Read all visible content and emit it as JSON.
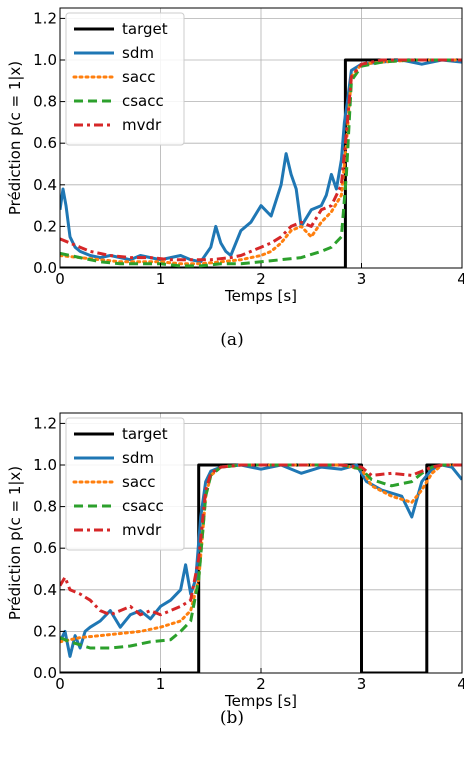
{
  "chart_data": [
    {
      "type": "line",
      "xlabel": "Temps [s]",
      "ylabel": "Prédiction p(c = 1|x)",
      "xlim": [
        0,
        4
      ],
      "ylim": [
        0,
        1.25
      ],
      "xticks": [
        0,
        1,
        2,
        3,
        4
      ],
      "yticks": [
        0.0,
        0.2,
        0.4,
        0.6,
        0.8,
        1.0,
        1.2
      ],
      "xtick_labels": [
        "0",
        "1",
        "2",
        "3",
        "4"
      ],
      "ytick_labels": [
        "0.0",
        "0.2",
        "0.4",
        "0.6",
        "0.8",
        "1.0",
        "1.2"
      ],
      "grid": true,
      "legend": "top-left",
      "caption": "(a)",
      "series": [
        {
          "name": "target",
          "color": "#000000",
          "style": "solid",
          "x": [
            0,
            2.84,
            2.84,
            4.0
          ],
          "y": [
            0,
            0,
            1.0,
            1.0
          ]
        },
        {
          "name": "sdm",
          "color": "#1f77b4",
          "style": "solid",
          "x": [
            0,
            0.03,
            0.06,
            0.1,
            0.15,
            0.2,
            0.3,
            0.4,
            0.5,
            0.6,
            0.7,
            0.8,
            0.9,
            1.0,
            1.1,
            1.2,
            1.3,
            1.4,
            1.5,
            1.55,
            1.6,
            1.65,
            1.7,
            1.8,
            1.9,
            2.0,
            2.1,
            2.2,
            2.25,
            2.3,
            2.35,
            2.4,
            2.5,
            2.6,
            2.65,
            2.7,
            2.75,
            2.8,
            2.83,
            2.86,
            2.9,
            3.0,
            3.2,
            3.4,
            3.6,
            3.8,
            4.0
          ],
          "y": [
            0.28,
            0.38,
            0.3,
            0.15,
            0.1,
            0.08,
            0.06,
            0.05,
            0.06,
            0.05,
            0.04,
            0.06,
            0.05,
            0.04,
            0.05,
            0.06,
            0.04,
            0.03,
            0.1,
            0.2,
            0.12,
            0.08,
            0.06,
            0.18,
            0.22,
            0.3,
            0.25,
            0.4,
            0.55,
            0.45,
            0.38,
            0.2,
            0.28,
            0.3,
            0.35,
            0.45,
            0.38,
            0.52,
            0.7,
            0.8,
            0.95,
            0.98,
            0.99,
            1.0,
            0.98,
            1.0,
            0.99
          ]
        },
        {
          "name": "sacc",
          "color": "#ff7f0e",
          "style": "dotted",
          "x": [
            0,
            0.2,
            0.4,
            0.6,
            0.8,
            1.0,
            1.2,
            1.4,
            1.6,
            1.8,
            2.0,
            2.1,
            2.2,
            2.3,
            2.4,
            2.5,
            2.6,
            2.7,
            2.8,
            2.85,
            2.9,
            3.0,
            3.2,
            3.5,
            4.0
          ],
          "y": [
            0.06,
            0.05,
            0.04,
            0.03,
            0.03,
            0.03,
            0.02,
            0.02,
            0.03,
            0.04,
            0.06,
            0.08,
            0.12,
            0.18,
            0.2,
            0.15,
            0.22,
            0.27,
            0.35,
            0.6,
            0.92,
            0.98,
            0.99,
            1.0,
            1.0
          ]
        },
        {
          "name": "csacc",
          "color": "#2ca02c",
          "style": "dashed",
          "x": [
            0,
            0.2,
            0.4,
            0.6,
            0.8,
            1.0,
            1.2,
            1.4,
            1.6,
            1.8,
            2.0,
            2.2,
            2.4,
            2.6,
            2.7,
            2.8,
            2.85,
            2.9,
            3.0,
            3.2,
            3.5,
            4.0
          ],
          "y": [
            0.07,
            0.05,
            0.03,
            0.02,
            0.02,
            0.02,
            0.01,
            0.01,
            0.02,
            0.02,
            0.03,
            0.04,
            0.05,
            0.08,
            0.1,
            0.15,
            0.45,
            0.9,
            0.97,
            0.99,
            1.0,
            1.0
          ]
        },
        {
          "name": "mvdr",
          "color": "#d62728",
          "style": "dashdot",
          "x": [
            0,
            0.1,
            0.2,
            0.3,
            0.5,
            0.7,
            0.9,
            1.1,
            1.3,
            1.5,
            1.7,
            1.8,
            1.9,
            2.0,
            2.1,
            2.2,
            2.3,
            2.4,
            2.5,
            2.6,
            2.7,
            2.8,
            2.85,
            2.9,
            3.0,
            3.2,
            3.5,
            4.0
          ],
          "y": [
            0.14,
            0.12,
            0.1,
            0.08,
            0.06,
            0.05,
            0.05,
            0.04,
            0.04,
            0.04,
            0.05,
            0.06,
            0.08,
            0.1,
            0.12,
            0.15,
            0.2,
            0.22,
            0.2,
            0.28,
            0.3,
            0.4,
            0.65,
            0.92,
            0.98,
            1.0,
            1.0,
            1.0
          ]
        }
      ]
    },
    {
      "type": "line",
      "xlabel": "Temps [s]",
      "ylabel": "Prédiction p(c = 1|x)",
      "xlim": [
        0,
        4
      ],
      "ylim": [
        0,
        1.25
      ],
      "xticks": [
        0,
        1,
        2,
        3,
        4
      ],
      "yticks": [
        0.0,
        0.2,
        0.4,
        0.6,
        0.8,
        1.0,
        1.2
      ],
      "xtick_labels": [
        "0",
        "1",
        "2",
        "3",
        "4"
      ],
      "ytick_labels": [
        "0.0",
        "0.2",
        "0.4",
        "0.6",
        "0.8",
        "1.0",
        "1.2"
      ],
      "grid": true,
      "legend": "top-left",
      "caption": "(b)",
      "series": [
        {
          "name": "target",
          "color": "#000000",
          "style": "solid",
          "x": [
            0,
            1.38,
            1.38,
            3.0,
            3.0,
            3.65,
            3.65,
            4.0
          ],
          "y": [
            0,
            0,
            1.0,
            1.0,
            0,
            0,
            1.0,
            1.0
          ]
        },
        {
          "name": "sdm",
          "color": "#1f77b4",
          "style": "solid",
          "x": [
            0,
            0.05,
            0.1,
            0.15,
            0.2,
            0.25,
            0.3,
            0.4,
            0.5,
            0.6,
            0.7,
            0.8,
            0.9,
            1.0,
            1.1,
            1.2,
            1.25,
            1.3,
            1.35,
            1.4,
            1.45,
            1.5,
            1.6,
            1.8,
            2.0,
            2.2,
            2.4,
            2.6,
            2.8,
            2.95,
            3.05,
            3.2,
            3.4,
            3.5,
            3.6,
            3.7,
            3.8,
            3.9,
            4.0
          ],
          "y": [
            0.15,
            0.2,
            0.08,
            0.18,
            0.12,
            0.2,
            0.22,
            0.25,
            0.3,
            0.22,
            0.28,
            0.3,
            0.26,
            0.32,
            0.35,
            0.4,
            0.52,
            0.38,
            0.45,
            0.75,
            0.92,
            0.97,
            0.99,
            1.0,
            0.98,
            1.0,
            0.96,
            0.99,
            0.98,
            1.0,
            0.92,
            0.88,
            0.85,
            0.75,
            0.92,
            0.98,
            1.0,
            0.99,
            0.93
          ]
        },
        {
          "name": "sacc",
          "color": "#ff7f0e",
          "style": "dotted",
          "x": [
            0,
            0.2,
            0.4,
            0.6,
            0.8,
            1.0,
            1.2,
            1.3,
            1.38,
            1.45,
            1.5,
            1.6,
            1.8,
            2.0,
            2.4,
            2.8,
            3.0,
            3.1,
            3.3,
            3.5,
            3.6,
            3.7,
            3.8,
            4.0
          ],
          "y": [
            0.15,
            0.17,
            0.18,
            0.19,
            0.2,
            0.22,
            0.25,
            0.3,
            0.45,
            0.85,
            0.95,
            0.99,
            1.0,
            1.0,
            1.0,
            1.0,
            0.98,
            0.9,
            0.85,
            0.82,
            0.88,
            0.96,
            1.0,
            1.0
          ]
        },
        {
          "name": "csacc",
          "color": "#2ca02c",
          "style": "dashed",
          "x": [
            0,
            0.1,
            0.3,
            0.5,
            0.7,
            0.9,
            1.1,
            1.2,
            1.3,
            1.38,
            1.45,
            1.5,
            1.6,
            1.8,
            2.0,
            2.4,
            2.8,
            3.0,
            3.1,
            3.3,
            3.5,
            3.6,
            3.7,
            3.8,
            4.0
          ],
          "y": [
            0.17,
            0.15,
            0.12,
            0.12,
            0.13,
            0.15,
            0.16,
            0.2,
            0.25,
            0.45,
            0.85,
            0.95,
            0.99,
            1.0,
            1.0,
            1.0,
            1.0,
            0.98,
            0.93,
            0.9,
            0.92,
            0.96,
            0.99,
            1.0,
            1.0
          ]
        },
        {
          "name": "mvdr",
          "color": "#d62728",
          "style": "dashdot",
          "x": [
            0,
            0.05,
            0.1,
            0.2,
            0.3,
            0.4,
            0.5,
            0.6,
            0.7,
            0.8,
            0.9,
            1.0,
            1.1,
            1.2,
            1.3,
            1.38,
            1.45,
            1.5,
            1.6,
            1.8,
            2.0,
            2.4,
            2.8,
            3.0,
            3.1,
            3.3,
            3.5,
            3.6,
            3.7,
            3.8,
            4.0
          ],
          "y": [
            0.42,
            0.46,
            0.4,
            0.38,
            0.35,
            0.3,
            0.28,
            0.3,
            0.32,
            0.28,
            0.3,
            0.28,
            0.3,
            0.32,
            0.35,
            0.55,
            0.88,
            0.96,
            0.99,
            1.0,
            1.0,
            1.0,
            1.0,
            0.99,
            0.95,
            0.96,
            0.95,
            0.97,
            0.99,
            1.0,
            1.0
          ]
        }
      ]
    }
  ]
}
